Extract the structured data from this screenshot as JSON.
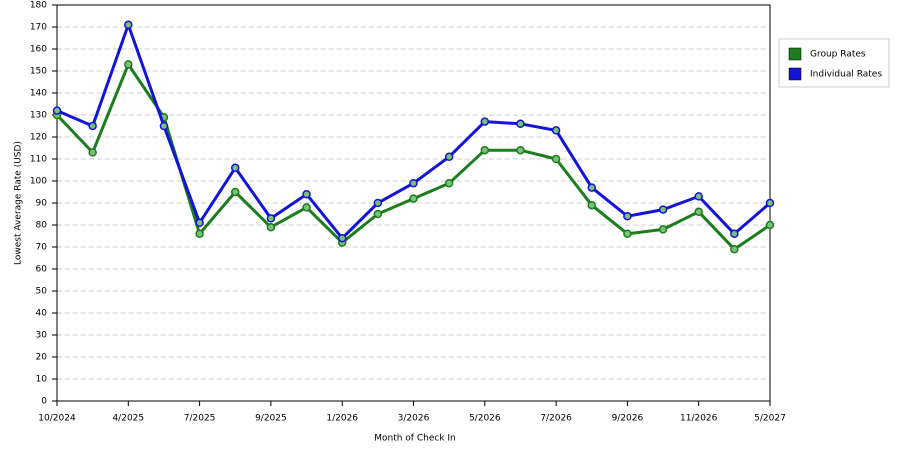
{
  "chart_data": {
    "type": "line",
    "x_label": "Month of Check In",
    "y_label": "Lowest Average Rate (USD)",
    "categories": [
      "10/2024",
      null,
      "4/2025",
      null,
      "7/2025",
      null,
      "9/2025",
      null,
      "1/2026",
      null,
      "3/2026",
      null,
      "5/2026",
      null,
      "7/2026",
      null,
      "9/2026",
      null,
      "11/2026",
      null,
      "5/2027"
    ],
    "series": [
      {
        "name": "Group Rates",
        "color": "#1b7d1b",
        "values": [
          130,
          113,
          153,
          129,
          76,
          95,
          79,
          88,
          72,
          85,
          92,
          99,
          114,
          114,
          110,
          89,
          76,
          78,
          86,
          69,
          80
        ]
      },
      {
        "name": "Individual Rates",
        "color": "#1414d8",
        "values": [
          132,
          125,
          171,
          125,
          81,
          106,
          83,
          94,
          74,
          90,
          99,
          111,
          127,
          126,
          123,
          97,
          84,
          87,
          93,
          76,
          90
        ]
      }
    ],
    "ylim": [
      0,
      180
    ],
    "yticks": [
      0,
      10,
      20,
      30,
      40,
      50,
      60,
      70,
      80,
      90,
      100,
      110,
      120,
      130,
      140,
      150,
      160,
      170,
      180
    ],
    "grid": true,
    "legend": "right"
  }
}
